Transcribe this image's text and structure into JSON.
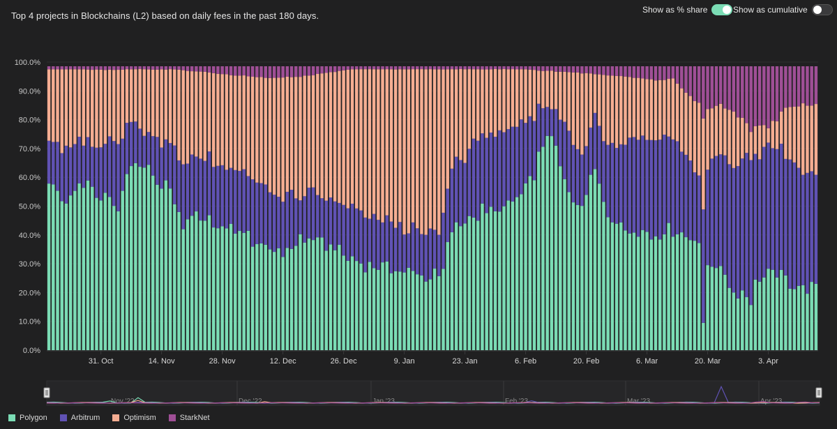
{
  "header": {
    "title": "Top 4 projects in Blockchains (L2) based on daily fees in the past 180 days.",
    "toggle_share_label": "Show as % share",
    "toggle_share_on": true,
    "toggle_cumulative_label": "Show as cumulative",
    "toggle_cumulative_on": false
  },
  "colors": {
    "Polygon": "#7bdcb5",
    "Arbitrum": "#6052b4",
    "Optimism": "#f5ad92",
    "StarkNet": "#9f4f96",
    "background": "#202021",
    "gridline": "#2e2e30",
    "bar_edge": "#1f1f20"
  },
  "chart_data": {
    "type": "bar",
    "stacked": true,
    "percent": true,
    "title": "Top 4 projects in Blockchains (L2) based on daily fees in the past 180 days.",
    "xlabel": "",
    "ylabel": "",
    "ylim": [
      0,
      100
    ],
    "y_ticks": [
      "0.0%",
      "10.0%",
      "20.0%",
      "30.0%",
      "40.0%",
      "50.0%",
      "60.0%",
      "70.0%",
      "80.0%",
      "90.0%",
      "100.0%"
    ],
    "x_ticks": [
      {
        "label": "31. Oct",
        "day": 12
      },
      {
        "label": "14. Nov",
        "day": 26
      },
      {
        "label": "28. Nov",
        "day": 40
      },
      {
        "label": "12. Dec",
        "day": 54
      },
      {
        "label": "26. Dec",
        "day": 68
      },
      {
        "label": "9. Jan",
        "day": 82
      },
      {
        "label": "23. Jan",
        "day": 96
      },
      {
        "label": "6. Feb",
        "day": 110
      },
      {
        "label": "20. Feb",
        "day": 124
      },
      {
        "label": "6. Mar",
        "day": 138
      },
      {
        "label": "20. Mar",
        "day": 152
      },
      {
        "label": "3. Apr",
        "day": 166
      }
    ],
    "legend": [
      "Polygon",
      "Arbitrum",
      "Optimism",
      "StarkNet"
    ],
    "series": [
      {
        "name": "Polygon",
        "keypoints": [
          [
            0,
            57
          ],
          [
            3,
            48
          ],
          [
            8,
            54
          ],
          [
            12,
            44
          ],
          [
            16,
            40
          ],
          [
            18,
            58
          ],
          [
            22,
            65
          ],
          [
            24,
            50
          ],
          [
            28,
            54
          ],
          [
            31,
            35
          ],
          [
            35,
            45
          ],
          [
            40,
            38
          ],
          [
            45,
            40
          ],
          [
            50,
            34
          ],
          [
            55,
            32
          ],
          [
            60,
            36
          ],
          [
            65,
            35
          ],
          [
            70,
            31
          ],
          [
            75,
            29
          ],
          [
            80,
            27
          ],
          [
            84,
            26
          ],
          [
            88,
            25
          ],
          [
            91,
            27
          ],
          [
            93,
            40
          ],
          [
            97,
            45
          ],
          [
            101,
            46
          ],
          [
            105,
            49
          ],
          [
            110,
            53
          ],
          [
            114,
            60
          ],
          [
            116,
            76
          ],
          [
            118,
            58
          ],
          [
            120,
            55
          ],
          [
            123,
            46
          ],
          [
            125,
            61
          ],
          [
            127,
            55
          ],
          [
            129,
            44
          ],
          [
            132,
            42
          ],
          [
            136,
            44
          ],
          [
            140,
            41
          ],
          [
            144,
            40
          ],
          [
            148,
            38
          ],
          [
            150,
            36
          ],
          [
            151,
            4
          ],
          [
            152,
            26
          ],
          [
            154,
            30
          ],
          [
            156,
            26
          ],
          [
            158,
            17
          ],
          [
            160,
            15
          ],
          [
            162,
            12
          ],
          [
            164,
            20
          ],
          [
            166,
            20
          ],
          [
            168,
            22
          ],
          [
            170,
            22
          ],
          [
            177,
            22
          ]
        ]
      },
      {
        "name": "Arbitrum",
        "keypoints": [
          [
            0,
            17
          ],
          [
            5,
            16
          ],
          [
            10,
            12
          ],
          [
            15,
            17
          ],
          [
            20,
            14
          ],
          [
            25,
            12
          ],
          [
            30,
            18
          ],
          [
            40,
            20
          ],
          [
            50,
            20
          ],
          [
            55,
            18
          ],
          [
            58,
            12
          ],
          [
            60,
            14
          ],
          [
            65,
            15
          ],
          [
            70,
            17
          ],
          [
            75,
            16
          ],
          [
            80,
            15
          ],
          [
            84,
            14
          ],
          [
            88,
            15
          ],
          [
            90,
            12
          ],
          [
            92,
            20
          ],
          [
            95,
            23
          ],
          [
            100,
            25
          ],
          [
            105,
            24
          ],
          [
            110,
            23
          ],
          [
            115,
            10
          ],
          [
            120,
            20
          ],
          [
            125,
            16
          ],
          [
            130,
            26
          ],
          [
            135,
            35
          ],
          [
            140,
            35
          ],
          [
            145,
            30
          ],
          [
            150,
            22
          ],
          [
            153,
            35
          ],
          [
            156,
            40
          ],
          [
            160,
            32
          ],
          [
            164,
            33
          ],
          [
            168,
            37
          ],
          [
            172,
            40
          ],
          [
            177,
            40
          ]
        ]
      },
      {
        "name": "Optimism",
        "keypoints": [
          [
            0,
            25
          ],
          [
            10,
            23
          ],
          [
            20,
            20
          ],
          [
            30,
            25
          ],
          [
            40,
            30
          ],
          [
            50,
            38
          ],
          [
            60,
            37
          ],
          [
            66,
            42
          ],
          [
            70,
            48
          ],
          [
            80,
            52
          ],
          [
            85,
            55
          ],
          [
            88,
            56
          ],
          [
            90,
            52
          ],
          [
            93,
            33
          ],
          [
            100,
            23
          ],
          [
            105,
            21
          ],
          [
            110,
            18
          ],
          [
            114,
            11
          ],
          [
            118,
            15
          ],
          [
            120,
            21
          ],
          [
            123,
            29
          ],
          [
            126,
            12
          ],
          [
            128,
            20
          ],
          [
            133,
            22
          ],
          [
            138,
            20
          ],
          [
            142,
            19
          ],
          [
            145,
            18
          ],
          [
            148,
            20
          ],
          [
            150,
            21
          ],
          [
            154,
            18
          ],
          [
            158,
            15
          ],
          [
            162,
            7
          ],
          [
            166,
            5
          ],
          [
            170,
            14
          ],
          [
            174,
            24
          ],
          [
            177,
            24
          ]
        ]
      },
      {
        "name": "StarkNet",
        "keypoints": [
          [
            0,
            1
          ],
          [
            30,
            1
          ],
          [
            50,
            4
          ],
          [
            60,
            3
          ],
          [
            70,
            1
          ],
          [
            90,
            1
          ],
          [
            110,
            1
          ],
          [
            130,
            3
          ],
          [
            140,
            5
          ],
          [
            144,
            4
          ],
          [
            147,
            9
          ],
          [
            150,
            12
          ],
          [
            152,
            13
          ],
          [
            156,
            14
          ],
          [
            160,
            13
          ],
          [
            166,
            17
          ],
          [
            170,
            13
          ],
          [
            177,
            14
          ]
        ]
      }
    ]
  },
  "navigator": {
    "labels": [
      "Nov '22",
      "Dec '22",
      "Jan '23",
      "Feb '23",
      "Mar '23",
      "Apr '23"
    ]
  }
}
